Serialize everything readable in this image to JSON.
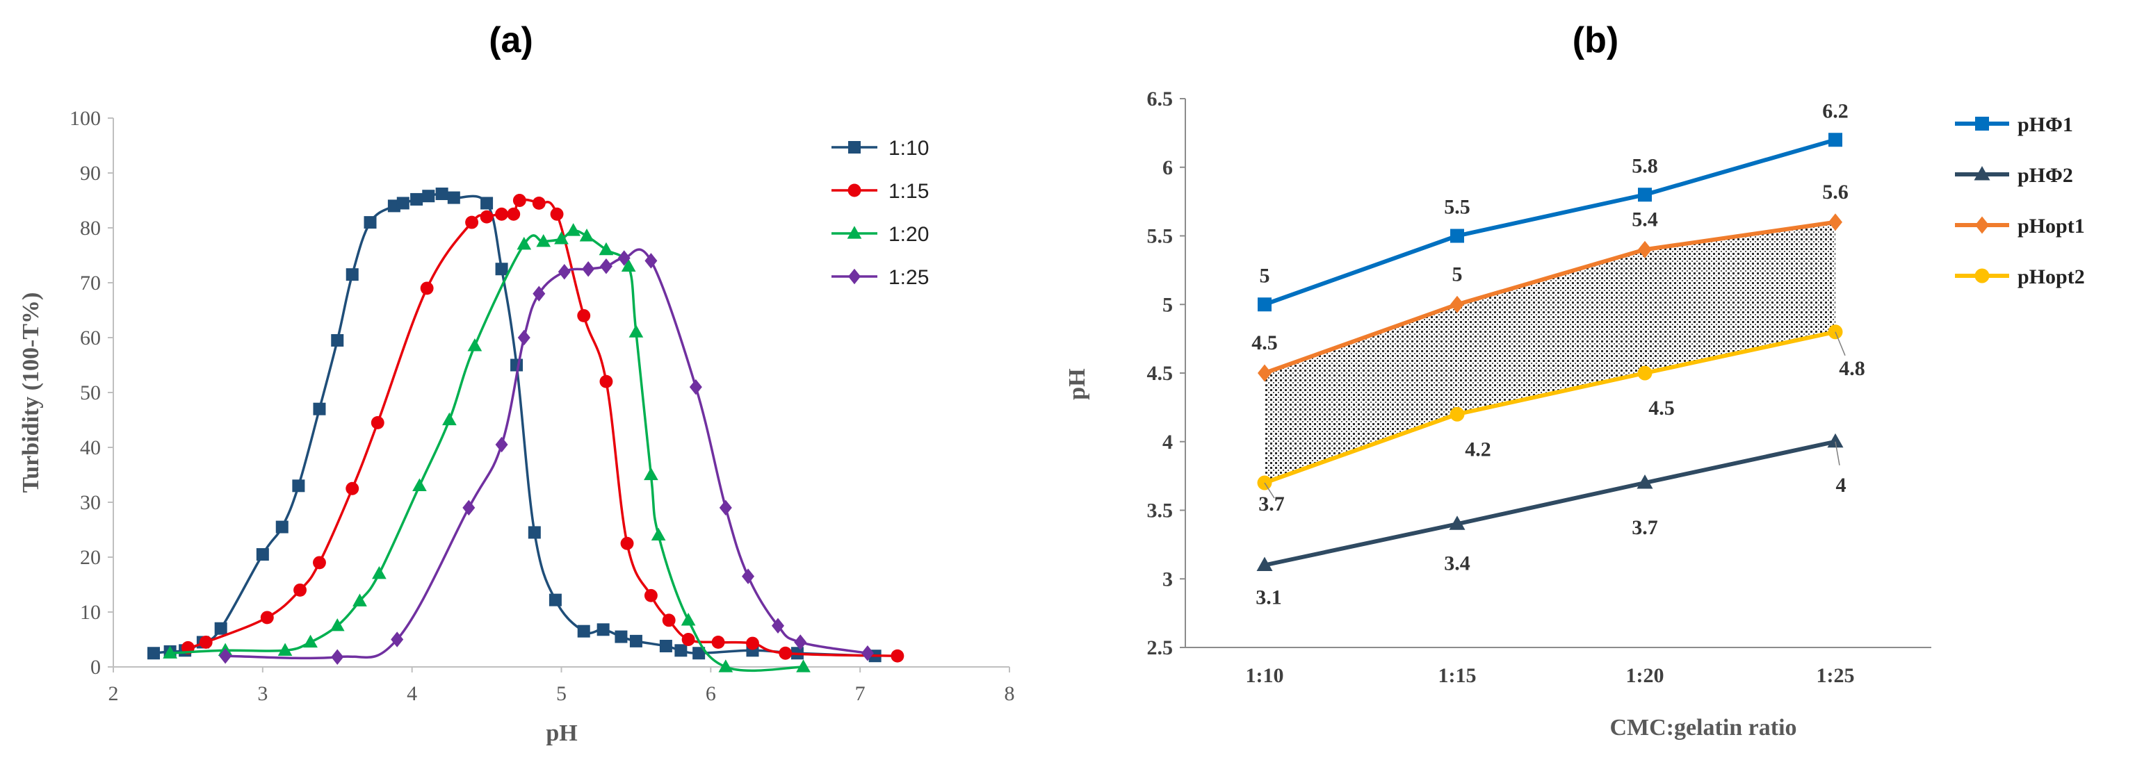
{
  "chart_data": [
    {
      "type": "line",
      "panel_label": "(a)",
      "xlabel": "pH",
      "ylabel": "Turbidity (100-T%)",
      "xlim": [
        2,
        8
      ],
      "ylim": [
        0,
        100
      ],
      "x_ticks": [
        2,
        3,
        4,
        5,
        6,
        7,
        8
      ],
      "y_ticks": [
        0,
        10,
        20,
        30,
        40,
        50,
        60,
        70,
        80,
        90,
        100
      ],
      "legend_position": "top-right",
      "series": [
        {
          "name": "1:10",
          "color": "#1f4e79",
          "marker": "square",
          "points": [
            [
              2.27,
              2.5
            ],
            [
              2.38,
              2.8
            ],
            [
              2.48,
              3
            ],
            [
              2.6,
              4.5
            ],
            [
              2.72,
              7
            ],
            [
              3.0,
              20.5
            ],
            [
              3.13,
              25.5
            ],
            [
              3.24,
              33
            ],
            [
              3.38,
              47
            ],
            [
              3.5,
              59.5
            ],
            [
              3.6,
              71.5
            ],
            [
              3.72,
              81
            ],
            [
              3.88,
              84
            ],
            [
              3.94,
              84.5
            ],
            [
              4.03,
              85.2
            ],
            [
              4.11,
              85.8
            ],
            [
              4.2,
              86.2
            ],
            [
              4.28,
              85.5
            ],
            [
              4.5,
              84.5
            ],
            [
              4.6,
              72.5
            ],
            [
              4.7,
              55
            ],
            [
              4.82,
              24.5
            ],
            [
              4.96,
              12.2
            ],
            [
              5.15,
              6.5
            ],
            [
              5.28,
              6.8
            ],
            [
              5.4,
              5.5
            ],
            [
              5.5,
              4.7
            ],
            [
              5.7,
              3.8
            ],
            [
              5.8,
              3
            ],
            [
              5.92,
              2.5
            ],
            [
              6.28,
              3
            ],
            [
              6.58,
              2.5
            ],
            [
              7.1,
              2
            ]
          ]
        },
        {
          "name": "1:15",
          "color": "#e8000b",
          "marker": "circle",
          "points": [
            [
              2.5,
              3.5
            ],
            [
              2.62,
              4.5
            ],
            [
              3.03,
              9
            ],
            [
              3.25,
              14
            ],
            [
              3.38,
              19
            ],
            [
              3.6,
              32.5
            ],
            [
              3.77,
              44.5
            ],
            [
              4.1,
              69
            ],
            [
              4.4,
              81
            ],
            [
              4.5,
              82
            ],
            [
              4.6,
              82.5
            ],
            [
              4.68,
              82.5
            ],
            [
              4.72,
              85
            ],
            [
              4.85,
              84.5
            ],
            [
              4.97,
              82.5
            ],
            [
              5.15,
              64
            ],
            [
              5.3,
              52
            ],
            [
              5.44,
              22.5
            ],
            [
              5.6,
              13
            ],
            [
              5.72,
              8.5
            ],
            [
              5.85,
              5
            ],
            [
              6.05,
              4.5
            ],
            [
              6.28,
              4.3
            ],
            [
              6.5,
              2.5
            ],
            [
              7.25,
              2
            ]
          ]
        },
        {
          "name": "1:20",
          "color": "#00b050",
          "marker": "triangle",
          "points": [
            [
              2.38,
              2.5
            ],
            [
              2.75,
              3
            ],
            [
              3.15,
              3
            ],
            [
              3.32,
              4.5
            ],
            [
              3.5,
              7.5
            ],
            [
              3.65,
              12
            ],
            [
              3.78,
              17
            ],
            [
              4.05,
              33
            ],
            [
              4.25,
              45
            ],
            [
              4.42,
              58.5
            ],
            [
              4.75,
              77
            ],
            [
              4.88,
              77.5
            ],
            [
              5.0,
              78
            ],
            [
              5.08,
              79.5
            ],
            [
              5.17,
              78.5
            ],
            [
              5.3,
              76
            ],
            [
              5.45,
              73
            ],
            [
              5.5,
              61
            ],
            [
              5.6,
              35
            ],
            [
              5.65,
              24
            ],
            [
              5.85,
              8.5
            ],
            [
              6.1,
              0
            ],
            [
              6.62,
              0
            ]
          ]
        },
        {
          "name": "1:25",
          "color": "#7030a0",
          "marker": "diamond",
          "points": [
            [
              2.75,
              2
            ],
            [
              3.5,
              1.8
            ],
            [
              3.9,
              5
            ],
            [
              4.38,
              29
            ],
            [
              4.6,
              40.5
            ],
            [
              4.75,
              60
            ],
            [
              4.85,
              68
            ],
            [
              5.02,
              72
            ],
            [
              5.18,
              72.5
            ],
            [
              5.3,
              73
            ],
            [
              5.42,
              74.5
            ],
            [
              5.6,
              74
            ],
            [
              5.9,
              51
            ],
            [
              6.1,
              29
            ],
            [
              6.25,
              16.5
            ],
            [
              6.45,
              7.5
            ],
            [
              6.6,
              4.5
            ],
            [
              7.05,
              2.5
            ]
          ]
        }
      ]
    },
    {
      "type": "line",
      "panel_label": "(b)",
      "xlabel": "CMC:gelatin ratio",
      "ylabel": "pH",
      "categories": [
        "1:10",
        "1:15",
        "1:20",
        "1:25"
      ],
      "ylim": [
        2.5,
        6.5
      ],
      "y_ticks": [
        2.5,
        3,
        3.5,
        4,
        4.5,
        5,
        5.5,
        6,
        6.5
      ],
      "legend_position": "top-right",
      "shaded_region": {
        "between": [
          "pHopt1",
          "pHopt2"
        ],
        "pattern": "dotted"
      },
      "series": [
        {
          "name": "pHΦ1",
          "color": "#0070c0",
          "marker": "square",
          "values": [
            5,
            5.5,
            5.8,
            6.2
          ],
          "labels": [
            "5",
            "5.5",
            "5.8",
            "6.2"
          ]
        },
        {
          "name": "pHΦ2",
          "color": "#2f4a62",
          "marker": "triangle",
          "values": [
            3.1,
            3.4,
            3.7,
            4
          ],
          "labels": [
            "3.1",
            "3.4",
            "3.7",
            "4"
          ]
        },
        {
          "name": "pHopt1",
          "color": "#f07c2c",
          "marker": "diamond",
          "values": [
            4.5,
            5,
            5.4,
            5.6
          ],
          "labels": [
            "4.5",
            "5",
            "5.4",
            "5.6"
          ]
        },
        {
          "name": "pHopt2",
          "color": "#ffc000",
          "marker": "circle",
          "values": [
            3.7,
            4.2,
            4.5,
            4.8
          ],
          "labels": [
            "3.7",
            "4.2",
            "4.5",
            "4.8"
          ]
        }
      ]
    }
  ]
}
